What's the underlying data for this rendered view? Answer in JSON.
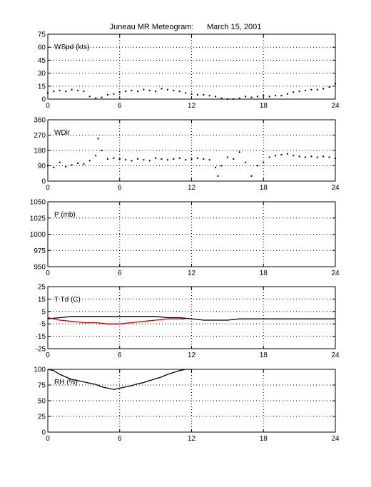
{
  "title": "Juneau MR Meteogram:      March 15, 2001",
  "chart_data": [
    {
      "type": "scatter",
      "panel_label": "WSpd (kts)",
      "xlim": [
        0,
        24
      ],
      "xticks": [
        0,
        6,
        12,
        18,
        24
      ],
      "ylim": [
        0,
        75
      ],
      "yticks": [
        0,
        15,
        30,
        45,
        60,
        75
      ],
      "grid": "dotted",
      "series": [
        {
          "color": "#000000",
          "style": "dots",
          "points": [
            [
              0,
              7
            ],
            [
              0.5,
              9
            ],
            [
              1,
              10
            ],
            [
              1.5,
              9
            ],
            [
              2,
              11
            ],
            [
              2.5,
              10
            ],
            [
              3,
              9
            ],
            [
              3.5,
              3
            ],
            [
              4,
              1
            ],
            [
              4.5,
              2
            ],
            [
              5,
              5
            ],
            [
              5.5,
              6
            ],
            [
              6,
              8
            ],
            [
              6.5,
              9
            ],
            [
              7,
              10
            ],
            [
              7.5,
              9
            ],
            [
              8,
              11
            ],
            [
              8.5,
              10
            ],
            [
              9,
              9
            ],
            [
              9.5,
              12
            ],
            [
              10,
              11
            ],
            [
              10.5,
              10
            ],
            [
              11,
              9
            ],
            [
              11.5,
              7
            ],
            [
              12,
              6
            ],
            [
              12.5,
              5
            ],
            [
              13,
              5
            ],
            [
              13.5,
              4
            ],
            [
              14,
              3
            ],
            [
              14.5,
              1
            ],
            [
              15,
              0
            ],
            [
              15.5,
              0
            ],
            [
              16,
              1
            ],
            [
              16.5,
              3
            ],
            [
              17,
              2
            ],
            [
              17.5,
              3
            ],
            [
              18,
              4
            ],
            [
              18.5,
              3
            ],
            [
              19,
              4
            ],
            [
              19.5,
              4
            ],
            [
              20,
              6
            ],
            [
              20.5,
              8
            ],
            [
              21,
              9
            ],
            [
              21.5,
              10
            ],
            [
              22,
              11
            ],
            [
              22.5,
              11
            ],
            [
              23,
              12
            ],
            [
              23.5,
              14
            ],
            [
              24,
              18
            ]
          ]
        }
      ]
    },
    {
      "type": "scatter",
      "panel_label": "WDir",
      "xlim": [
        0,
        24
      ],
      "xticks": [
        0,
        6,
        12,
        18,
        24
      ],
      "ylim": [
        0,
        360
      ],
      "yticks": [
        0,
        90,
        180,
        270,
        360
      ],
      "grid": "dotted",
      "series": [
        {
          "color": "#000000",
          "style": "dots",
          "points": [
            [
              0,
              90
            ],
            [
              0.5,
              80
            ],
            [
              1,
              110
            ],
            [
              1.5,
              85
            ],
            [
              2,
              95
            ],
            [
              2.5,
              105
            ],
            [
              3,
              100
            ],
            [
              3.5,
              120
            ],
            [
              4,
              150
            ],
            [
              4.2,
              250
            ],
            [
              4.5,
              180
            ],
            [
              5,
              130
            ],
            [
              5.5,
              135
            ],
            [
              6,
              130
            ],
            [
              6.5,
              125
            ],
            [
              7,
              120
            ],
            [
              7.5,
              130
            ],
            [
              8,
              125
            ],
            [
              8.5,
              120
            ],
            [
              9,
              135
            ],
            [
              9.5,
              130
            ],
            [
              10,
              125
            ],
            [
              10.5,
              130
            ],
            [
              11,
              135
            ],
            [
              11.5,
              125
            ],
            [
              12,
              130
            ],
            [
              12.5,
              135
            ],
            [
              13,
              130
            ],
            [
              13.5,
              125
            ],
            [
              14,
              80
            ],
            [
              14.2,
              30
            ],
            [
              14.5,
              90
            ],
            [
              15,
              140
            ],
            [
              15.5,
              130
            ],
            [
              16,
              170
            ],
            [
              16.5,
              110
            ],
            [
              17,
              30
            ],
            [
              17.5,
              90
            ],
            [
              18,
              110
            ],
            [
              18.5,
              140
            ],
            [
              19,
              150
            ],
            [
              19.5,
              155
            ],
            [
              20,
              160
            ],
            [
              20.5,
              150
            ],
            [
              21,
              145
            ],
            [
              21.5,
              140
            ],
            [
              22,
              145
            ],
            [
              22.5,
              140
            ],
            [
              23,
              145
            ],
            [
              23.5,
              140
            ],
            [
              24,
              135
            ]
          ]
        }
      ]
    },
    {
      "type": "scatter",
      "panel_label": "P (mb)",
      "xlim": [
        0,
        24
      ],
      "xticks": [
        0,
        6,
        12,
        18,
        24
      ],
      "ylim": [
        950,
        1050
      ],
      "yticks": [
        950,
        975,
        1000,
        1025,
        1050
      ],
      "grid": "dotted",
      "series": []
    },
    {
      "type": "line",
      "panel_label": "T Td (C)",
      "xlim": [
        0,
        24
      ],
      "xticks": [
        0,
        6,
        12,
        18,
        24
      ],
      "ylim": [
        -25,
        25
      ],
      "yticks": [
        -25,
        -15,
        -5,
        5,
        15,
        25
      ],
      "grid": "dotted",
      "series": [
        {
          "color": "#000000",
          "style": "line",
          "points": [
            [
              0,
              -1
            ],
            [
              1,
              0
            ],
            [
              2,
              1
            ],
            [
              3,
              1
            ],
            [
              4,
              1
            ],
            [
              5,
              1
            ],
            [
              6,
              1
            ],
            [
              7,
              1
            ],
            [
              8,
              1
            ],
            [
              9,
              1
            ],
            [
              10,
              0
            ],
            [
              11,
              0
            ],
            [
              12,
              -1
            ],
            [
              13,
              -2
            ],
            [
              14,
              -2
            ],
            [
              15,
              -2
            ],
            [
              16,
              -1
            ],
            [
              17,
              -1
            ],
            [
              18,
              -1
            ],
            [
              19,
              -1
            ],
            [
              20,
              -1
            ],
            [
              21,
              -1
            ],
            [
              22,
              -1
            ],
            [
              23,
              -1
            ],
            [
              24,
              -1
            ]
          ]
        },
        {
          "color": "#cc0000",
          "style": "line",
          "points": [
            [
              0,
              0
            ],
            [
              1,
              -2
            ],
            [
              2,
              -3
            ],
            [
              3,
              -4
            ],
            [
              4,
              -4
            ],
            [
              5,
              -5
            ],
            [
              6,
              -5
            ],
            [
              7,
              -4
            ],
            [
              8,
              -3
            ],
            [
              9,
              -2
            ],
            [
              10,
              -1
            ],
            [
              11,
              -1
            ],
            [
              11.5,
              -1
            ]
          ]
        }
      ]
    },
    {
      "type": "line",
      "panel_label": "RH (%)",
      "xlim": [
        0,
        24
      ],
      "xticks": [
        0,
        6,
        12,
        18,
        24
      ],
      "ylim": [
        0,
        100
      ],
      "yticks": [
        0,
        25,
        50,
        75,
        100
      ],
      "grid": "dotted",
      "series": [
        {
          "color": "#000000",
          "style": "line",
          "points": [
            [
              0,
              100
            ],
            [
              0.5,
              98
            ],
            [
              1,
              92
            ],
            [
              1.5,
              88
            ],
            [
              2,
              84
            ],
            [
              2.5,
              82
            ],
            [
              3,
              80
            ],
            [
              3.5,
              78
            ],
            [
              4,
              76
            ],
            [
              4.5,
              72
            ],
            [
              5,
              70
            ],
            [
              5.5,
              68
            ],
            [
              6,
              70
            ],
            [
              6.5,
              72
            ],
            [
              7,
              74
            ],
            [
              7.5,
              77
            ],
            [
              8,
              79
            ],
            [
              8.5,
              82
            ],
            [
              9,
              85
            ],
            [
              9.5,
              88
            ],
            [
              10,
              92
            ],
            [
              10.5,
              95
            ],
            [
              11,
              98
            ],
            [
              11.5,
              100
            ],
            [
              12,
              100
            ]
          ]
        }
      ]
    }
  ]
}
